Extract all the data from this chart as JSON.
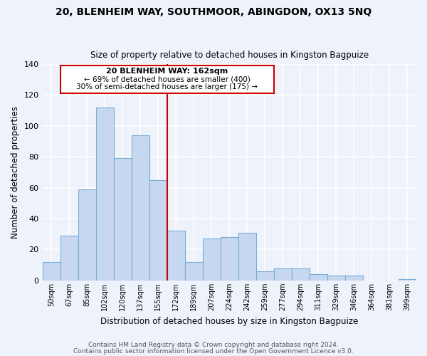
{
  "title": "20, BLENHEIM WAY, SOUTHMOOR, ABINGDON, OX13 5NQ",
  "subtitle": "Size of property relative to detached houses in Kingston Bagpuize",
  "xlabel": "Distribution of detached houses by size in Kingston Bagpuize",
  "ylabel": "Number of detached properties",
  "bar_color": "#c5d8f0",
  "bar_edge_color": "#7aadd4",
  "background_color": "#eef2fb",
  "grid_color": "#ffffff",
  "categories": [
    "50sqm",
    "67sqm",
    "85sqm",
    "102sqm",
    "120sqm",
    "137sqm",
    "155sqm",
    "172sqm",
    "189sqm",
    "207sqm",
    "224sqm",
    "242sqm",
    "259sqm",
    "277sqm",
    "294sqm",
    "311sqm",
    "329sqm",
    "346sqm",
    "364sqm",
    "381sqm",
    "399sqm"
  ],
  "values": [
    12,
    29,
    59,
    112,
    79,
    94,
    65,
    32,
    12,
    27,
    28,
    31,
    6,
    8,
    8,
    4,
    3,
    3,
    0,
    0,
    1
  ],
  "ylim": [
    0,
    140
  ],
  "yticks": [
    0,
    20,
    40,
    60,
    80,
    100,
    120,
    140
  ],
  "vline_color": "#cc0000",
  "annotation_text_line1": "20 BLENHEIM WAY: 162sqm",
  "annotation_text_line2": "← 69% of detached houses are smaller (400)",
  "annotation_text_line3": "30% of semi-detached houses are larger (175) →",
  "annotation_box_color": "#cc0000",
  "footer_line1": "Contains HM Land Registry data © Crown copyright and database right 2024.",
  "footer_line2": "Contains public sector information licensed under the Open Government Licence v3.0."
}
